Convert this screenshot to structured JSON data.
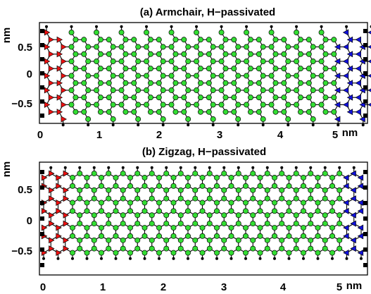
{
  "panels": [
    {
      "title": "(a) Armchair, H−passivated",
      "edge": "armchair",
      "x_ticks": [
        "0",
        "1",
        "2",
        "3",
        "4",
        "5"
      ],
      "x_unit": "nm",
      "y_ticks": [
        "0.5",
        "0",
        "−0.5"
      ],
      "y_unit": "nm",
      "x_range_nm": [
        0,
        5.4
      ],
      "y_range_nm": [
        -0.9,
        0.8
      ]
    },
    {
      "title": "(b) Zigzag, H−passivated",
      "edge": "zigzag",
      "x_ticks": [
        "0",
        "1",
        "2",
        "3",
        "4",
        "5"
      ],
      "x_unit": "nm",
      "y_ticks": [
        "0.5",
        "0",
        "−0.5"
      ],
      "y_unit": "nm",
      "x_range_nm": [
        0,
        5.4
      ],
      "y_range_nm": [
        -0.9,
        0.8
      ]
    }
  ],
  "legend_colors": {
    "carbon_center": "#33dd33",
    "left_lead": "#ee1111",
    "right_lead": "#1111dd",
    "hydrogen": "#000000"
  }
}
